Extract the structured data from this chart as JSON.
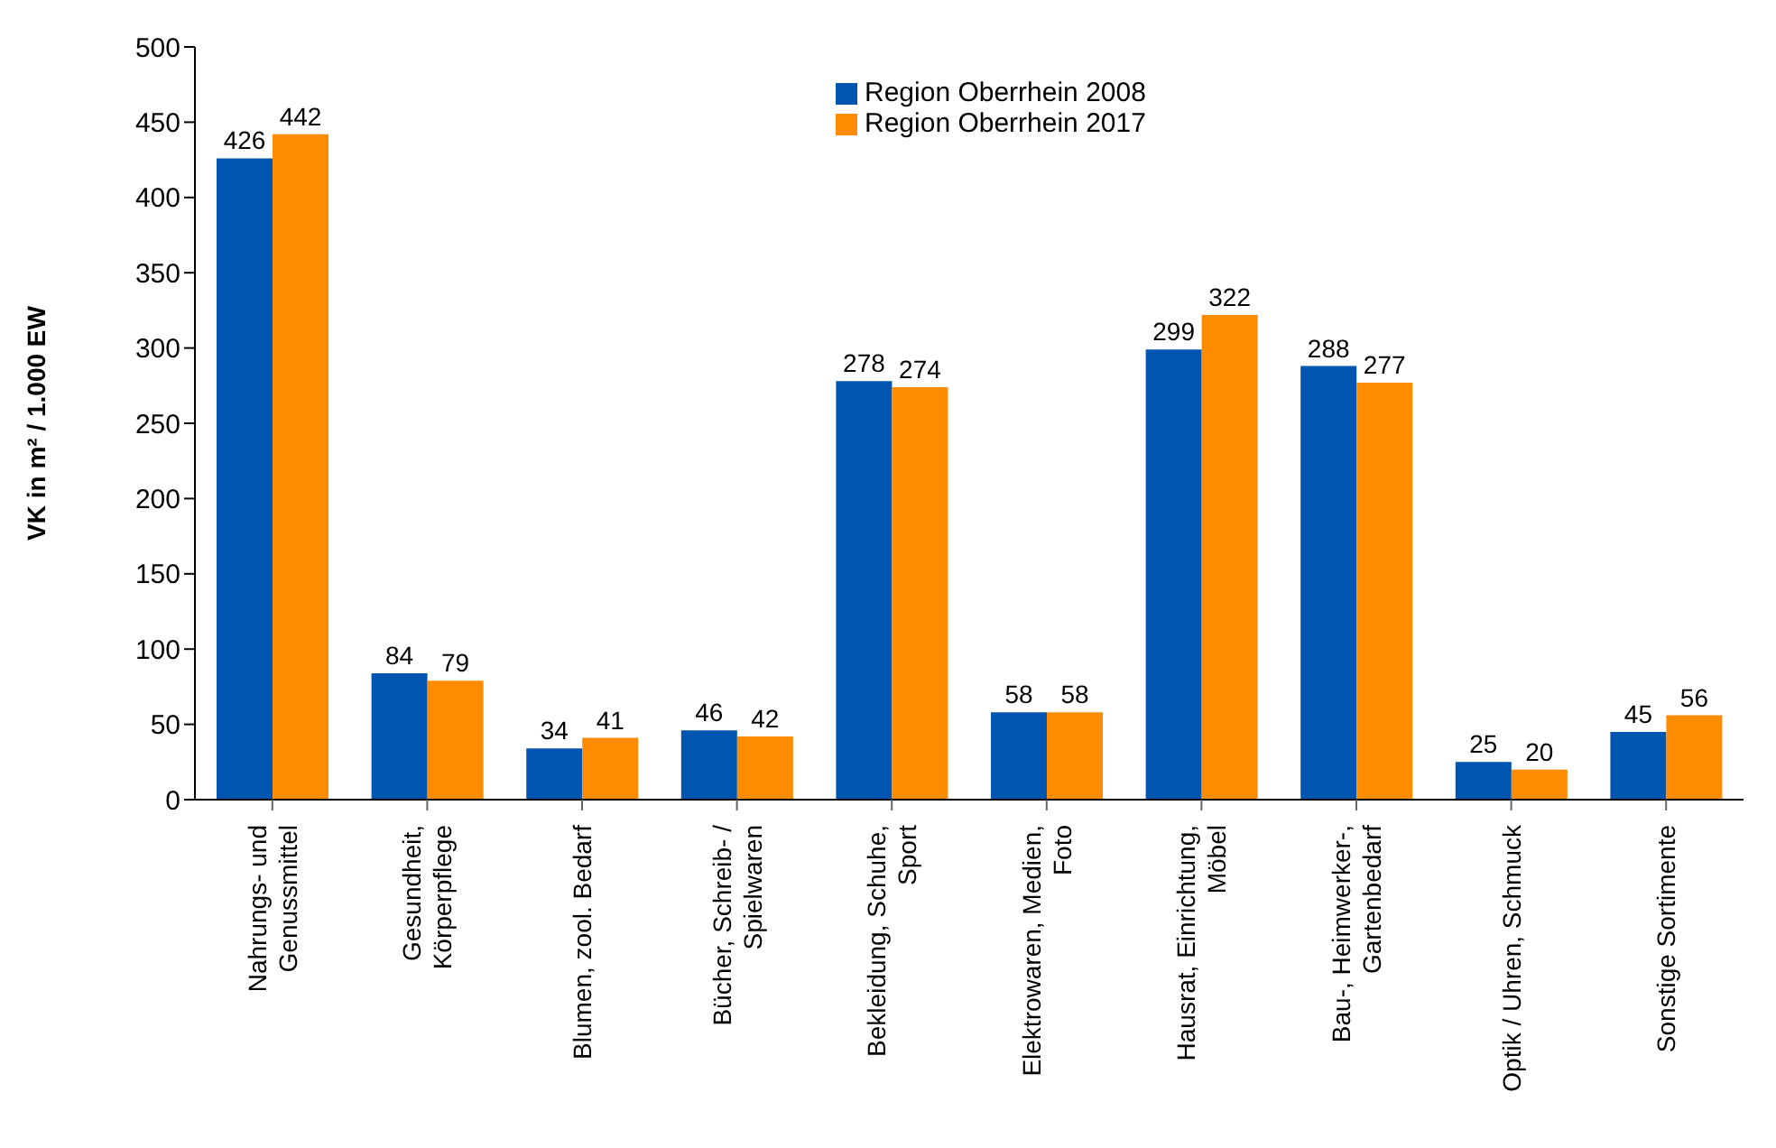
{
  "chart_data": {
    "type": "bar",
    "ylabel": "VK in m² / 1.000 EW",
    "categories": [
      "Nahrungs- und Genussmittel",
      "Gesundheit, Körperpflege",
      "Blumen, zool. Bedarf",
      "Bücher, Schreib- / Spielwaren",
      "Bekleidung, Schuhe, Sport",
      "Elektrowaren, Medien, Foto",
      "Hausrat, Einrichtung, Möbel",
      "Bau-, Heimwerker-, Gartenbedarf",
      "Optik / Uhren, Schmuck",
      "Sonstige Sortimente"
    ],
    "series": [
      {
        "name": "Region Oberrhein 2008",
        "color": "#0055b0",
        "values": [
          426,
          84,
          34,
          46,
          278,
          58,
          299,
          288,
          25,
          45
        ]
      },
      {
        "name": "Region Oberrhein 2017",
        "color": "#ff8c00",
        "values": [
          442,
          79,
          41,
          42,
          274,
          58,
          322,
          277,
          20,
          56
        ]
      }
    ],
    "ylim": [
      0,
      500
    ],
    "yticks": [
      0,
      50,
      100,
      150,
      200,
      250,
      300,
      350,
      400,
      450,
      500
    ],
    "legend": "top",
    "data_labels": true
  }
}
